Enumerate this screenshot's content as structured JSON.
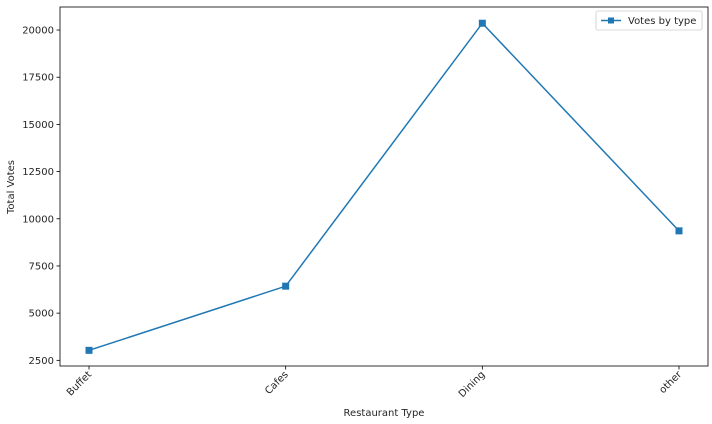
{
  "chart_data": {
    "type": "line",
    "categories": [
      "Buffet",
      "Cafes",
      "Dining",
      "other"
    ],
    "series": [
      {
        "name": "Votes by type",
        "values": [
          3030,
          6430,
          20360,
          9360
        ],
        "color": "#1f77b4",
        "marker": "square"
      }
    ],
    "xlabel": "Restaurant Type",
    "ylabel": "Total Votes",
    "yticks": [
      2500,
      5000,
      7500,
      10000,
      12500,
      15000,
      17500,
      20000
    ],
    "ylim": [
      2200,
      21220
    ],
    "grid": false,
    "legend_position": "top-right",
    "x_tick_rotation": 45
  }
}
